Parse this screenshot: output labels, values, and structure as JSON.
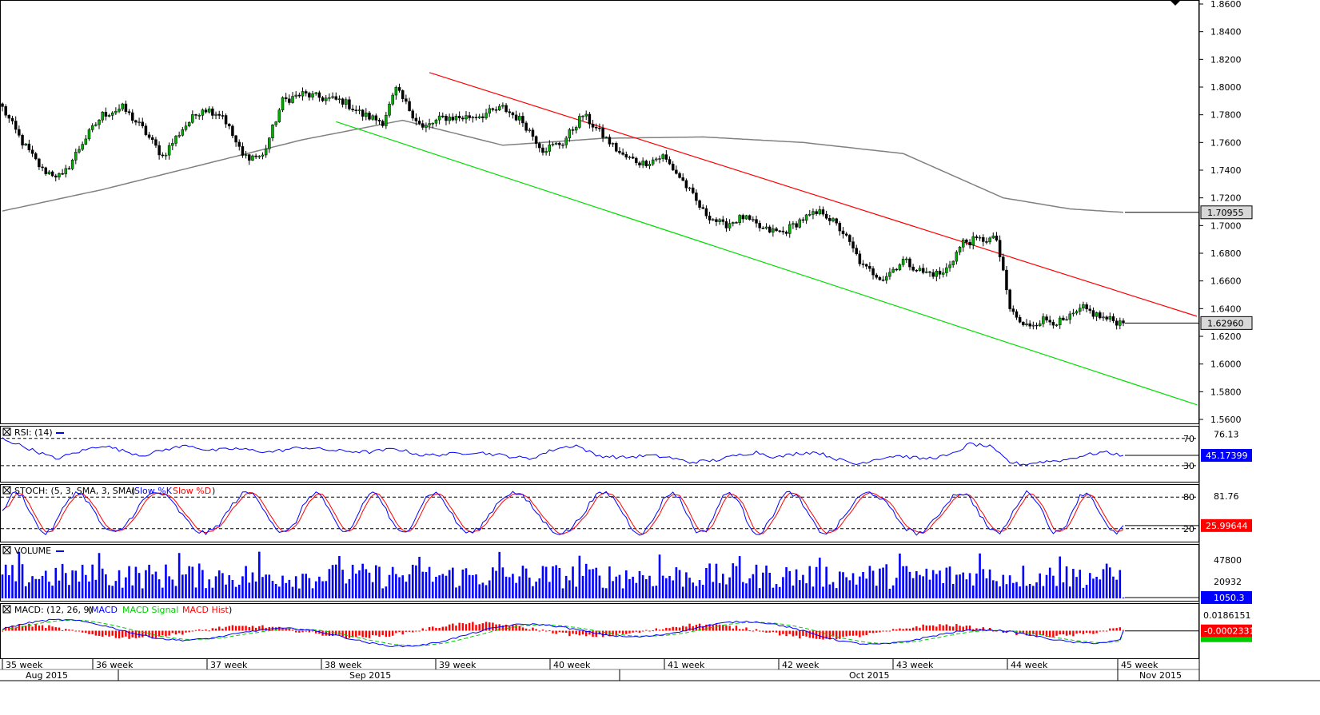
{
  "chart_data": {
    "type": "candlestick",
    "price_panel": {
      "ylim": [
        1.56,
        1.86
      ],
      "y_ticks": [
        "1.8600",
        "1.8400",
        "1.8200",
        "1.8000",
        "1.7800",
        "1.7600",
        "1.7400",
        "1.7200",
        "1.7000",
        "1.6800",
        "1.6600",
        "1.6400",
        "1.6200",
        "1.6000",
        "1.5800",
        "1.5600"
      ],
      "last_price_label": "1.62960",
      "last_price": 1.6296,
      "ma_label": "1.70955",
      "ma_value": 1.70955,
      "channel_upper": {
        "color": "#ff0000",
        "start": [
          128,
          1.8105
        ],
        "end": [
          360,
          1.633
        ]
      },
      "channel_lower": {
        "color": "#00dd00",
        "start": [
          100,
          1.775
        ],
        "end": [
          360,
          1.569
        ]
      },
      "ma_curve": [
        [
          0,
          1.7105
        ],
        [
          30,
          1.726
        ],
        [
          60,
          1.744
        ],
        [
          90,
          1.762
        ],
        [
          120,
          1.776
        ],
        [
          150,
          1.758
        ],
        [
          180,
          1.763
        ],
        [
          210,
          1.764
        ],
        [
          240,
          1.76
        ],
        [
          270,
          1.752
        ],
        [
          300,
          1.72
        ],
        [
          320,
          1.712
        ],
        [
          336,
          1.70955
        ]
      ],
      "close_anchors": [
        [
          0,
          1.785
        ],
        [
          6,
          1.76
        ],
        [
          12,
          1.74
        ],
        [
          18,
          1.735
        ],
        [
          24,
          1.76
        ],
        [
          30,
          1.78
        ],
        [
          36,
          1.785
        ],
        [
          42,
          1.77
        ],
        [
          48,
          1.75
        ],
        [
          54,
          1.77
        ],
        [
          60,
          1.785
        ],
        [
          66,
          1.78
        ],
        [
          72,
          1.75
        ],
        [
          78,
          1.75
        ],
        [
          84,
          1.79
        ],
        [
          90,
          1.795
        ],
        [
          96,
          1.792
        ],
        [
          102,
          1.79
        ],
        [
          108,
          1.78
        ],
        [
          114,
          1.775
        ],
        [
          118,
          1.798
        ],
        [
          126,
          1.77
        ],
        [
          132,
          1.778
        ],
        [
          138,
          1.778
        ],
        [
          144,
          1.78
        ],
        [
          150,
          1.785
        ],
        [
          156,
          1.775
        ],
        [
          162,
          1.755
        ],
        [
          168,
          1.76
        ],
        [
          174,
          1.78
        ],
        [
          180,
          1.765
        ],
        [
          186,
          1.75
        ],
        [
          192,
          1.745
        ],
        [
          198,
          1.75
        ],
        [
          204,
          1.732
        ],
        [
          210,
          1.71
        ],
        [
          216,
          1.7
        ],
        [
          222,
          1.706
        ],
        [
          228,
          1.697
        ],
        [
          234,
          1.695
        ],
        [
          240,
          1.705
        ],
        [
          246,
          1.71
        ],
        [
          252,
          1.695
        ],
        [
          258,
          1.67
        ],
        [
          264,
          1.662
        ],
        [
          270,
          1.675
        ],
        [
          276,
          1.666
        ],
        [
          282,
          1.665
        ],
        [
          288,
          1.688
        ],
        [
          294,
          1.69
        ],
        [
          298,
          1.69
        ],
        [
          302,
          1.64
        ],
        [
          306,
          1.627
        ],
        [
          312,
          1.632
        ],
        [
          318,
          1.63
        ],
        [
          324,
          1.64
        ],
        [
          330,
          1.633
        ],
        [
          336,
          1.6296
        ]
      ]
    },
    "rsi_panel": {
      "label": "RSI: (14)",
      "levels": [
        70,
        30
      ],
      "level_labels": [
        "70",
        "30"
      ],
      "top_label": "76.13",
      "last_label": "45.17399",
      "last_value": 45.17399,
      "ylim": [
        10,
        85
      ],
      "anchors": [
        [
          0,
          70
        ],
        [
          8,
          55
        ],
        [
          16,
          40
        ],
        [
          24,
          52
        ],
        [
          30,
          60
        ],
        [
          36,
          52
        ],
        [
          42,
          45
        ],
        [
          50,
          55
        ],
        [
          56,
          60
        ],
        [
          62,
          52
        ],
        [
          70,
          55
        ],
        [
          80,
          50
        ],
        [
          90,
          57
        ],
        [
          100,
          52
        ],
        [
          110,
          50
        ],
        [
          118,
          55
        ],
        [
          126,
          45
        ],
        [
          134,
          47
        ],
        [
          142,
          50
        ],
        [
          150,
          45
        ],
        [
          158,
          40
        ],
        [
          166,
          55
        ],
        [
          172,
          60
        ],
        [
          178,
          45
        ],
        [
          186,
          42
        ],
        [
          194,
          45
        ],
        [
          200,
          42
        ],
        [
          206,
          35
        ],
        [
          214,
          38
        ],
        [
          220,
          45
        ],
        [
          226,
          50
        ],
        [
          232,
          42
        ],
        [
          238,
          48
        ],
        [
          244,
          50
        ],
        [
          250,
          40
        ],
        [
          256,
          32
        ],
        [
          262,
          40
        ],
        [
          268,
          45
        ],
        [
          276,
          40
        ],
        [
          284,
          45
        ],
        [
          290,
          62
        ],
        [
          296,
          58
        ],
        [
          302,
          35
        ],
        [
          306,
          32
        ],
        [
          312,
          36
        ],
        [
          318,
          38
        ],
        [
          324,
          45
        ],
        [
          330,
          50
        ],
        [
          336,
          45.2
        ]
      ]
    },
    "stoch_panel": {
      "label": "STOCH: (5, 3, SMA, 3, SMA)",
      "legend_items": [
        "Slow %K",
        "Slow %D"
      ],
      "levels": [
        80,
        20
      ],
      "level_labels": [
        "80",
        "20"
      ],
      "top_label": "81.76",
      "last_label": "25.99644",
      "last_value": 25.99644,
      "ylim": [
        0,
        100
      ]
    },
    "volume_panel": {
      "label": "VOLUME",
      "top_label": "47800",
      "mid_label": "20932",
      "last_label": "1050.3",
      "last_value": 1050.3,
      "ylim": [
        0,
        65000
      ]
    },
    "macd_panel": {
      "label": "MACD: (12, 26, 9)",
      "legend_items": [
        "MACD",
        "MACD Signal",
        "MACD Hist"
      ],
      "top_label": "0.0186151",
      "last_label": "-0.0002331",
      "last_value": -0.0002331,
      "ylim": [
        -0.03,
        0.03
      ]
    },
    "x_axis": {
      "week_labels": [
        "35 week",
        "36 week",
        "37 week",
        "38 week",
        "39 week",
        "40 week",
        "41 week",
        "42 week",
        "43 week",
        "44 week",
        "45 week"
      ],
      "month_labels": [
        "Aug 2015",
        "Sep 2015",
        "Oct 2015",
        "Nov 2015"
      ]
    },
    "colors": {
      "bull": "#00b000",
      "bear": "#000000",
      "rsi": "#0000ff",
      "stoch_k": "#0000ff",
      "stoch_d": "#ff0000",
      "volume": "#0000ff",
      "macd": "#0000ff",
      "macd_signal": "#00cc00",
      "macd_hist": "#ff0000",
      "ma": "#808080",
      "last_box": "#0000ff"
    }
  }
}
